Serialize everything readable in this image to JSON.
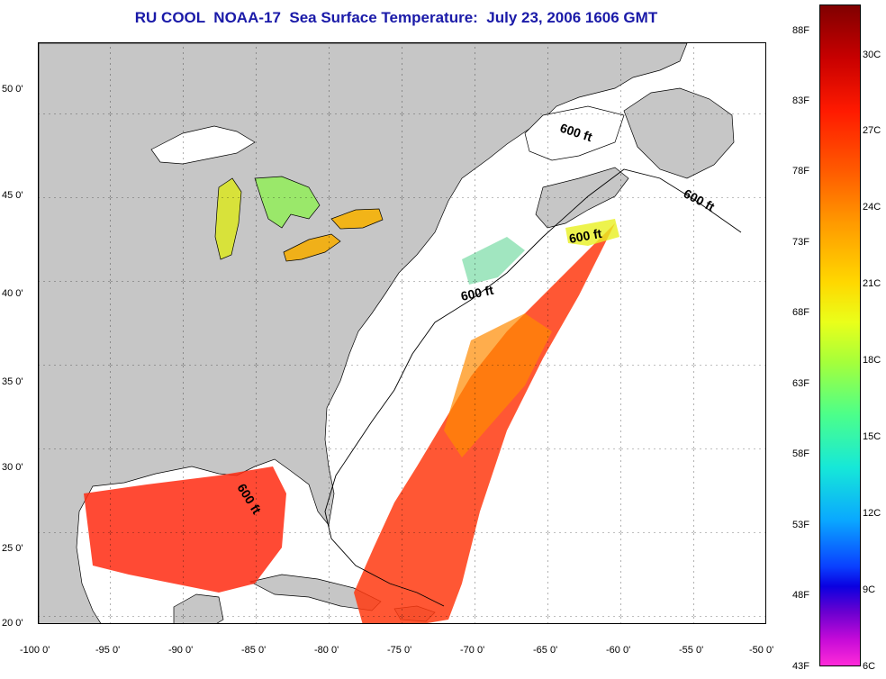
{
  "title": "RU COOL  NOAA-17  Sea Surface Temperature:  July 23, 2006 1606 GMT",
  "map": {
    "lon_ticks": [
      "-100 0'",
      "-95 0'",
      "-90 0'",
      "-85 0'",
      "-80 0'",
      "-75 0'",
      "-70 0'",
      "-65 0'",
      "-60 0'",
      "-55 0'",
      "-50 0'"
    ],
    "lat_ticks": [
      "50 0'",
      "45 0'",
      "40 0'",
      "35 0'",
      "30 0'",
      "25 0'",
      "20 0'"
    ],
    "depth_labels": [
      "600 ft",
      "600 ft",
      "600 ft",
      "600 ft",
      "600 ft"
    ],
    "colors": {
      "land": "#c6c6c6",
      "ocean": "#ffffff",
      "grid": "#000000"
    }
  },
  "colorbar": {
    "fahrenheit_labels": [
      "88F",
      "83F",
      "78F",
      "73F",
      "68F",
      "63F",
      "58F",
      "53F",
      "48F",
      "43F"
    ],
    "celsius_labels": [
      "30C",
      "27C",
      "24C",
      "21C",
      "18C",
      "15C",
      "12C",
      "9C",
      "6C"
    ]
  }
}
